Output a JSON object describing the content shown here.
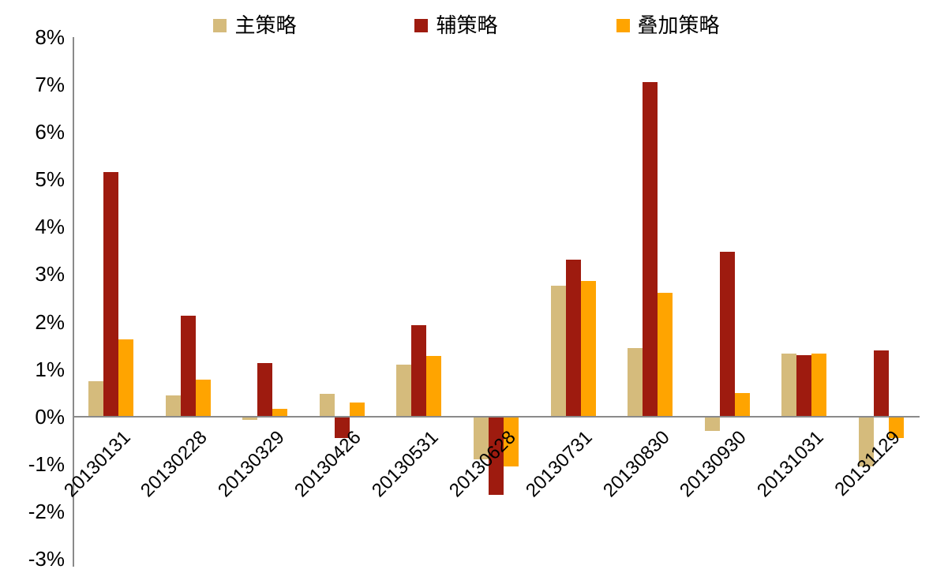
{
  "chart_data": {
    "type": "bar",
    "title": "",
    "categories": [
      "20130131",
      "20130228",
      "20130329",
      "20130426",
      "20130531",
      "20130628",
      "20130731",
      "20130830",
      "20130930",
      "20131031",
      "20131129"
    ],
    "series": [
      {
        "name": "主策略",
        "color": "#D5BB7C",
        "values": [
          0.75,
          0.45,
          -0.07,
          0.48,
          1.1,
          -0.9,
          2.75,
          1.45,
          -0.3,
          1.32,
          -1.05
        ]
      },
      {
        "name": "辅策略",
        "color": "#9E1B0F",
        "values": [
          5.15,
          2.12,
          1.12,
          -0.45,
          1.92,
          -1.65,
          3.3,
          7.05,
          3.48,
          1.3,
          1.4
        ]
      },
      {
        "name": "叠加策略",
        "color": "#FFA400",
        "values": [
          1.62,
          0.78,
          0.17,
          0.3,
          1.27,
          -1.05,
          2.85,
          2.6,
          0.5,
          1.33,
          -0.45
        ]
      }
    ],
    "ylim": [
      -3,
      8
    ],
    "ytick_step": 1,
    "ytick_suffix": "%",
    "grid": false,
    "legend_position": "top"
  }
}
